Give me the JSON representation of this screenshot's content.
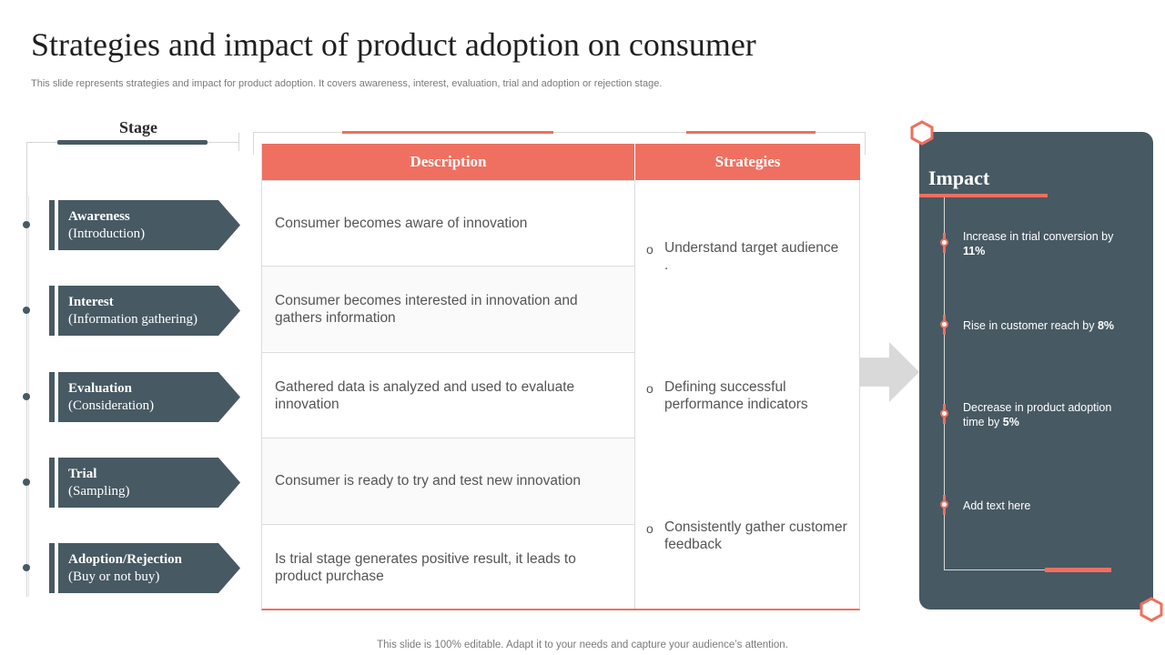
{
  "title": "Strategies and impact of product adoption on consumer",
  "subtitle": "This slide represents strategies and impact for product adoption. It covers awareness, interest, evaluation, trial and adoption or rejection stage.",
  "footer": "This slide is 100% editable. Adapt it to your needs and capture your audience’s attention.",
  "stage": {
    "heading": "Stage",
    "items": [
      {
        "name": "Awareness",
        "sub": "(Introduction)"
      },
      {
        "name": "Interest",
        "sub": "(Information gathering)"
      },
      {
        "name": "Evaluation",
        "sub": "(Consideration)"
      },
      {
        "name": "Trial",
        "sub": "(Sampling)"
      },
      {
        "name": "Adoption/Rejection",
        "sub": "(Buy or not buy)"
      }
    ]
  },
  "table": {
    "headers": {
      "description": "Description",
      "strategies": "Strategies"
    },
    "descriptions": [
      "Consumer becomes aware of innovation",
      "Consumer becomes interested in innovation and gathers information",
      "Gathered data is analyzed  and used to evaluate innovation",
      "Consumer is ready to try and test new innovation",
      "Is trial stage generates positive result, it leads to product purchase"
    ],
    "strategies": [
      {
        "bullet": "o",
        "text": "Understand target audience",
        "extra": "."
      },
      {
        "bullet": "o",
        "text": "Defining successful performance indicators"
      },
      {
        "bullet": "o",
        "text": "Consistently gather customer feedback"
      }
    ]
  },
  "impact": {
    "title": "Impact",
    "items": [
      {
        "text": "Increase in trial conversion by ",
        "highlight": "11%"
      },
      {
        "text": "Rise in customer reach by ",
        "highlight": "8%"
      },
      {
        "text": "Decrease in product adoption time by ",
        "highlight": "5%"
      },
      {
        "text": "Add text here",
        "highlight": ""
      }
    ]
  },
  "colors": {
    "accent": "#ef7060",
    "slate": "#475963",
    "arrow": "#d9d9d9"
  }
}
